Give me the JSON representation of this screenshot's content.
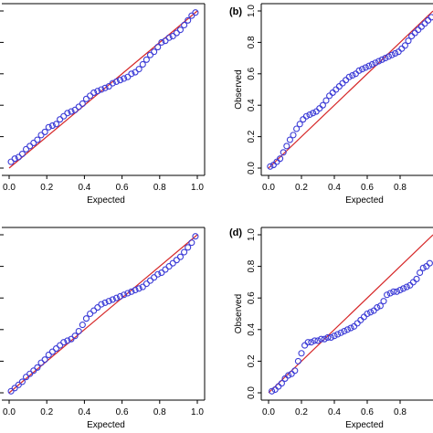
{
  "chart_data": [
    {
      "type": "scatter",
      "panel_label": "",
      "xlabel": "Expected",
      "ylabel": "",
      "xlim": [
        0,
        1
      ],
      "ylim": [
        0,
        1
      ],
      "xticks": [
        "0.0",
        "0.2",
        "0.4",
        "0.6",
        "0.8",
        "1.0"
      ],
      "yticks": [],
      "reference_line": {
        "from": [
          0,
          0
        ],
        "to": [
          1,
          1
        ],
        "color": "#d62728"
      },
      "point_color": "#3b3bd6",
      "series": [
        {
          "x": [
            0.01,
            0.03,
            0.05,
            0.07,
            0.09,
            0.11,
            0.13,
            0.15,
            0.17,
            0.19,
            0.21,
            0.23,
            0.25,
            0.27,
            0.29,
            0.31,
            0.33,
            0.35,
            0.37,
            0.39,
            0.41,
            0.43,
            0.45,
            0.47,
            0.49,
            0.51,
            0.53,
            0.55,
            0.57,
            0.59,
            0.61,
            0.63,
            0.65,
            0.67,
            0.69,
            0.71,
            0.73,
            0.75,
            0.77,
            0.79,
            0.81,
            0.83,
            0.85,
            0.87,
            0.89,
            0.91,
            0.93,
            0.95,
            0.97,
            0.99
          ],
          "y": [
            0.04,
            0.06,
            0.07,
            0.09,
            0.12,
            0.14,
            0.16,
            0.18,
            0.21,
            0.23,
            0.26,
            0.27,
            0.28,
            0.31,
            0.33,
            0.35,
            0.36,
            0.37,
            0.39,
            0.41,
            0.44,
            0.46,
            0.48,
            0.49,
            0.5,
            0.51,
            0.52,
            0.54,
            0.55,
            0.56,
            0.57,
            0.58,
            0.6,
            0.61,
            0.63,
            0.66,
            0.69,
            0.72,
            0.74,
            0.77,
            0.8,
            0.81,
            0.83,
            0.84,
            0.86,
            0.88,
            0.91,
            0.94,
            0.97,
            0.99
          ]
        }
      ]
    },
    {
      "type": "scatter",
      "panel_label": "(b)",
      "xlabel": "Expected",
      "ylabel": "Observed",
      "xlim": [
        0,
        1
      ],
      "ylim": [
        0,
        1
      ],
      "xticks": [
        "0.0",
        "0.2",
        "0.4",
        "0.6",
        "0.8"
      ],
      "yticks": [
        "0.0",
        "0.2",
        "0.4",
        "0.6",
        "0.8",
        "1.0"
      ],
      "reference_line": {
        "from": [
          0,
          0
        ],
        "to": [
          1,
          1
        ],
        "color": "#d62728"
      },
      "point_color": "#3b3bd6",
      "series": [
        {
          "x": [
            0.01,
            0.03,
            0.05,
            0.07,
            0.09,
            0.11,
            0.13,
            0.15,
            0.17,
            0.19,
            0.21,
            0.23,
            0.25,
            0.27,
            0.29,
            0.31,
            0.33,
            0.35,
            0.37,
            0.39,
            0.41,
            0.43,
            0.45,
            0.47,
            0.49,
            0.51,
            0.53,
            0.55,
            0.57,
            0.59,
            0.61,
            0.63,
            0.65,
            0.67,
            0.69,
            0.71,
            0.73,
            0.75,
            0.77,
            0.79,
            0.81,
            0.83,
            0.85,
            0.87,
            0.89,
            0.91,
            0.93,
            0.95,
            0.97,
            0.99
          ],
          "y": [
            0.01,
            0.02,
            0.04,
            0.06,
            0.1,
            0.14,
            0.18,
            0.21,
            0.25,
            0.28,
            0.31,
            0.33,
            0.34,
            0.35,
            0.36,
            0.38,
            0.4,
            0.43,
            0.46,
            0.48,
            0.5,
            0.52,
            0.54,
            0.56,
            0.58,
            0.59,
            0.6,
            0.62,
            0.63,
            0.64,
            0.65,
            0.66,
            0.67,
            0.68,
            0.69,
            0.7,
            0.71,
            0.72,
            0.73,
            0.74,
            0.76,
            0.78,
            0.81,
            0.84,
            0.86,
            0.88,
            0.9,
            0.92,
            0.94,
            0.96
          ]
        }
      ]
    },
    {
      "type": "scatter",
      "panel_label": "",
      "xlabel": "Expected",
      "ylabel": "",
      "xlim": [
        0,
        1
      ],
      "ylim": [
        0,
        1
      ],
      "xticks": [
        "0.0",
        "0.2",
        "0.4",
        "0.6",
        "0.8",
        "1.0"
      ],
      "yticks": [],
      "reference_line": {
        "from": [
          0,
          0
        ],
        "to": [
          1,
          1
        ],
        "color": "#d62728"
      },
      "point_color": "#3b3bd6",
      "series": [
        {
          "x": [
            0.01,
            0.03,
            0.05,
            0.07,
            0.09,
            0.11,
            0.13,
            0.15,
            0.17,
            0.19,
            0.21,
            0.23,
            0.25,
            0.27,
            0.29,
            0.31,
            0.33,
            0.35,
            0.37,
            0.39,
            0.41,
            0.43,
            0.45,
            0.47,
            0.49,
            0.51,
            0.53,
            0.55,
            0.57,
            0.59,
            0.61,
            0.63,
            0.65,
            0.67,
            0.69,
            0.71,
            0.73,
            0.75,
            0.77,
            0.79,
            0.81,
            0.83,
            0.85,
            0.87,
            0.89,
            0.91,
            0.93,
            0.95,
            0.97,
            0.99
          ],
          "y": [
            0.01,
            0.03,
            0.05,
            0.07,
            0.1,
            0.12,
            0.14,
            0.16,
            0.19,
            0.21,
            0.24,
            0.26,
            0.28,
            0.3,
            0.32,
            0.33,
            0.34,
            0.36,
            0.39,
            0.43,
            0.47,
            0.5,
            0.52,
            0.54,
            0.56,
            0.57,
            0.58,
            0.59,
            0.6,
            0.61,
            0.62,
            0.63,
            0.64,
            0.65,
            0.66,
            0.67,
            0.69,
            0.71,
            0.73,
            0.75,
            0.76,
            0.78,
            0.8,
            0.82,
            0.84,
            0.86,
            0.89,
            0.92,
            0.95,
            0.99
          ]
        }
      ]
    },
    {
      "type": "scatter",
      "panel_label": "(d)",
      "xlabel": "Expected",
      "ylabel": "Observed",
      "xlim": [
        0,
        1
      ],
      "ylim": [
        0,
        1
      ],
      "xticks": [
        "0.0",
        "0.2",
        "0.4",
        "0.6",
        "0.8"
      ],
      "yticks": [
        "0.0",
        "0.2",
        "0.4",
        "0.6",
        "0.8",
        "1.0"
      ],
      "reference_line": {
        "from": [
          0,
          0
        ],
        "to": [
          1,
          1
        ],
        "color": "#d62728"
      },
      "point_color": "#3b3bd6",
      "series": [
        {
          "x": [
            0.02,
            0.04,
            0.06,
            0.08,
            0.1,
            0.12,
            0.14,
            0.16,
            0.18,
            0.2,
            0.22,
            0.24,
            0.26,
            0.28,
            0.3,
            0.32,
            0.34,
            0.36,
            0.38,
            0.4,
            0.42,
            0.44,
            0.46,
            0.48,
            0.5,
            0.52,
            0.54,
            0.56,
            0.58,
            0.6,
            0.62,
            0.64,
            0.66,
            0.68,
            0.7,
            0.72,
            0.74,
            0.76,
            0.78,
            0.8,
            0.82,
            0.84,
            0.86,
            0.88,
            0.9,
            0.92,
            0.94,
            0.96,
            0.98
          ],
          "y": [
            0.01,
            0.02,
            0.04,
            0.06,
            0.09,
            0.11,
            0.12,
            0.14,
            0.2,
            0.25,
            0.3,
            0.32,
            0.32,
            0.33,
            0.33,
            0.34,
            0.34,
            0.35,
            0.35,
            0.36,
            0.37,
            0.38,
            0.39,
            0.4,
            0.41,
            0.42,
            0.44,
            0.46,
            0.48,
            0.5,
            0.51,
            0.52,
            0.54,
            0.55,
            0.58,
            0.62,
            0.63,
            0.64,
            0.64,
            0.65,
            0.66,
            0.67,
            0.68,
            0.7,
            0.72,
            0.76,
            0.79,
            0.8,
            0.82
          ]
        }
      ]
    }
  ]
}
